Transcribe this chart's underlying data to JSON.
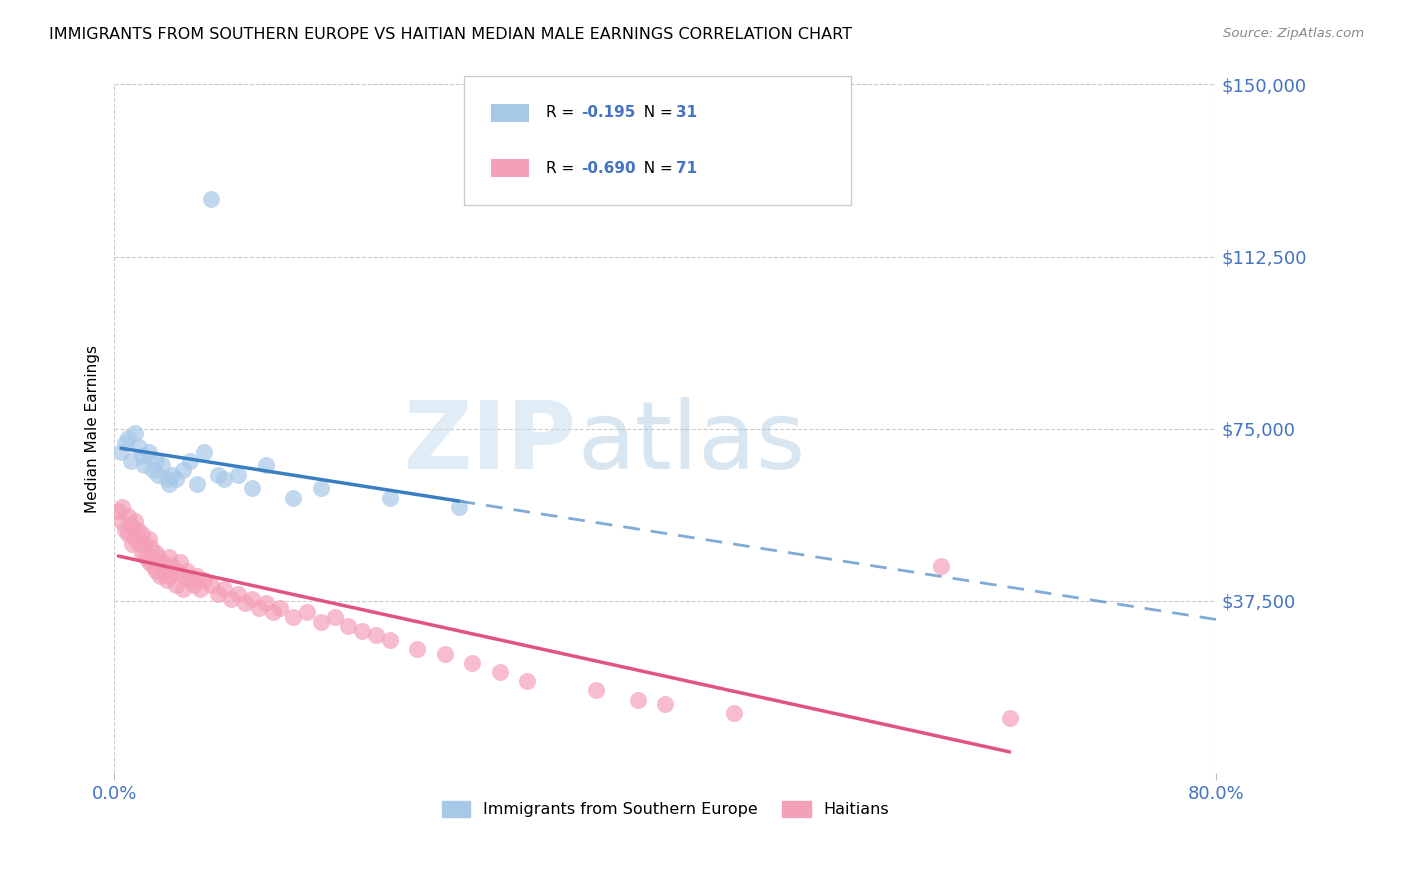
{
  "title": "IMMIGRANTS FROM SOUTHERN EUROPE VS HAITIAN MEDIAN MALE EARNINGS CORRELATION CHART",
  "source": "Source: ZipAtlas.com",
  "ylabel": "Median Male Earnings",
  "yticks": [
    0,
    37500,
    75000,
    112500,
    150000
  ],
  "ytick_labels": [
    "",
    "$37,500",
    "$75,000",
    "$112,500",
    "$150,000"
  ],
  "xtick_labels_bottom": [
    "0.0%",
    "80.0%"
  ],
  "xticks_bottom": [
    0,
    80
  ],
  "xmin": 0.0,
  "xmax": 80.0,
  "ymin": 0,
  "ymax": 150000,
  "blue_color": "#a8c8e8",
  "pink_color": "#f4a0b8",
  "blue_line_color": "#3a7fc1",
  "pink_line_color": "#e05580",
  "blue_R": "-0.195",
  "blue_N": "31",
  "pink_R": "-0.690",
  "pink_N": "71",
  "legend_label_blue": "Immigrants from Southern Europe",
  "legend_label_pink": "Haitians",
  "watermark_zip": "ZIP",
  "watermark_atlas": "atlas",
  "axis_color": "#4472c4",
  "grid_color": "#cccccc",
  "blue_scatter_x": [
    0.5,
    0.8,
    1.0,
    1.2,
    1.5,
    1.8,
    2.0,
    2.2,
    2.5,
    2.8,
    3.0,
    3.2,
    3.5,
    3.8,
    4.0,
    4.2,
    4.5,
    5.0,
    5.5,
    6.0,
    6.5,
    7.0,
    7.5,
    8.0,
    9.0,
    10.0,
    11.0,
    13.0,
    15.0,
    20.0,
    25.0
  ],
  "blue_scatter_y": [
    70000,
    72000,
    73000,
    68000,
    74000,
    71000,
    69000,
    67000,
    70000,
    66000,
    68000,
    65000,
    67000,
    64000,
    63000,
    65000,
    64000,
    66000,
    68000,
    63000,
    70000,
    125000,
    65000,
    64000,
    65000,
    62000,
    67000,
    60000,
    62000,
    60000,
    58000
  ],
  "pink_scatter_x": [
    0.3,
    0.5,
    0.6,
    0.8,
    1.0,
    1.0,
    1.2,
    1.3,
    1.5,
    1.5,
    1.7,
    1.8,
    2.0,
    2.0,
    2.2,
    2.3,
    2.5,
    2.5,
    2.7,
    2.8,
    3.0,
    3.0,
    3.2,
    3.3,
    3.5,
    3.7,
    3.8,
    4.0,
    4.0,
    4.2,
    4.5,
    4.5,
    4.8,
    5.0,
    5.0,
    5.3,
    5.5,
    5.8,
    6.0,
    6.2,
    6.5,
    7.0,
    7.5,
    8.0,
    8.5,
    9.0,
    9.5,
    10.0,
    10.5,
    11.0,
    11.5,
    12.0,
    13.0,
    14.0,
    15.0,
    16.0,
    17.0,
    18.0,
    19.0,
    20.0,
    22.0,
    24.0,
    26.0,
    28.0,
    30.0,
    35.0,
    38.0,
    40.0,
    45.0,
    60.0,
    65.0
  ],
  "pink_scatter_y": [
    57000,
    55000,
    58000,
    53000,
    56000,
    52000,
    54000,
    50000,
    55000,
    51000,
    53000,
    50000,
    52000,
    48000,
    50000,
    47000,
    51000,
    46000,
    49000,
    45000,
    48000,
    44000,
    47000,
    43000,
    46000,
    44000,
    42000,
    47000,
    43000,
    45000,
    44000,
    41000,
    46000,
    43000,
    40000,
    44000,
    42000,
    41000,
    43000,
    40000,
    42000,
    41000,
    39000,
    40000,
    38000,
    39000,
    37000,
    38000,
    36000,
    37000,
    35000,
    36000,
    34000,
    35000,
    33000,
    34000,
    32000,
    31000,
    30000,
    29000,
    27000,
    26000,
    24000,
    22000,
    20000,
    18000,
    16000,
    15000,
    13000,
    45000,
    12000
  ]
}
